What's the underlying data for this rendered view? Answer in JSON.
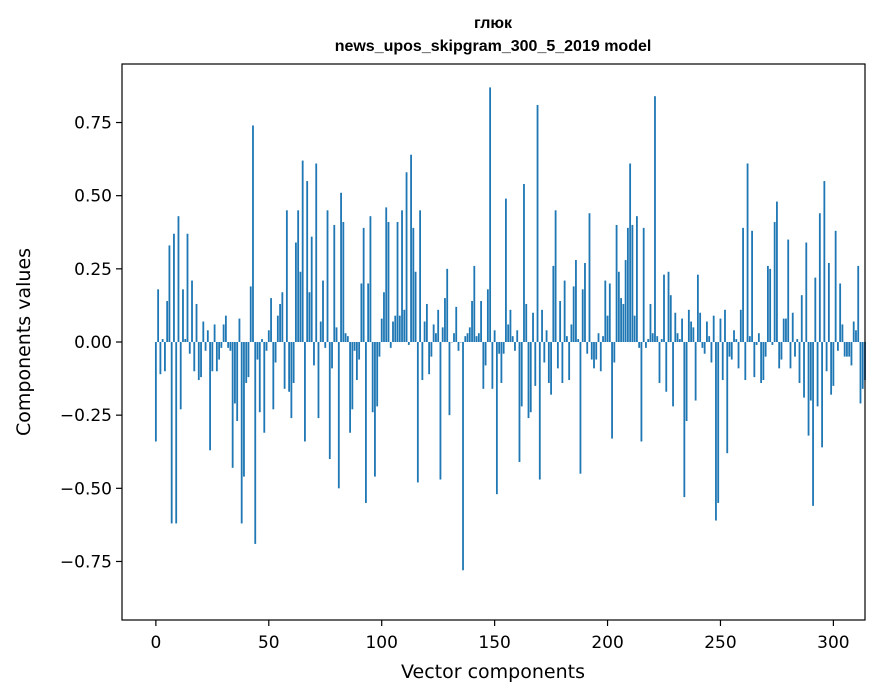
{
  "chart_data": {
    "type": "bar",
    "title": "глюк",
    "subtitle": "news_upos_skipgram_300_5_2019 model",
    "xlabel": "Vector components",
    "ylabel": "Components values",
    "xlim": [
      -15,
      314
    ],
    "ylim": [
      -0.95,
      0.95
    ],
    "xticks": [
      0,
      50,
      100,
      150,
      200,
      250,
      300
    ],
    "yticks": [
      -0.75,
      -0.5,
      -0.25,
      0.0,
      0.25,
      0.5,
      0.75
    ],
    "xtick_labels": [
      "0",
      "50",
      "100",
      "150",
      "200",
      "250",
      "300"
    ],
    "ytick_labels": [
      "−0.75",
      "−0.50",
      "−0.25",
      "0.00",
      "0.25",
      "0.50",
      "0.75"
    ],
    "bar_color": "#1f77b4",
    "grid": false,
    "values": [
      -0.34,
      0.18,
      -0.11,
      0.01,
      -0.1,
      0.14,
      0.33,
      -0.62,
      0.37,
      -0.62,
      0.43,
      -0.23,
      0.18,
      0.01,
      0.37,
      -0.04,
      0.21,
      -0.1,
      0.13,
      -0.13,
      -0.12,
      0.07,
      -0.03,
      0.04,
      -0.37,
      -0.1,
      0.06,
      -0.1,
      -0.06,
      -0.02,
      0.06,
      0.09,
      -0.02,
      -0.03,
      -0.43,
      -0.21,
      -0.27,
      0.08,
      -0.62,
      -0.46,
      -0.14,
      -0.12,
      0.19,
      0.74,
      -0.69,
      -0.06,
      -0.24,
      0.01,
      -0.31,
      -0.03,
      0.04,
      0.15,
      -0.23,
      -0.07,
      0.09,
      0.13,
      0.17,
      -0.16,
      0.45,
      -0.17,
      -0.26,
      -0.14,
      0.34,
      0.45,
      0.24,
      0.62,
      -0.34,
      0.55,
      0.17,
      0.36,
      -0.08,
      0.61,
      -0.26,
      0.07,
      0.21,
      -0.02,
      0.45,
      -0.4,
      -0.09,
      0.4,
      0.05,
      -0.5,
      0.51,
      0.41,
      0.03,
      0.02,
      -0.31,
      -0.23,
      -0.03,
      -0.13,
      -0.06,
      0.2,
      0.39,
      -0.55,
      0.2,
      0.43,
      -0.24,
      -0.46,
      -0.22,
      -0.05,
      0.08,
      0.17,
      0.46,
      0.41,
      -0.02,
      0.07,
      0.09,
      0.41,
      0.09,
      0.45,
      0.11,
      0.58,
      -0.01,
      0.64,
      0.39,
      0.24,
      -0.48,
      0.45,
      -0.13,
      0.07,
      0.13,
      -0.11,
      -0.05,
      0.06,
      0.03,
      0.11,
      -0.47,
      0.05,
      0.15,
      0.25,
      -0.25,
      0.0,
      0.03,
      0.12,
      -0.03,
      0.0,
      -0.78,
      0.02,
      0.03,
      0.05,
      0.14,
      0.26,
      0.02,
      0.03,
      0.14,
      -0.16,
      -0.08,
      0.18,
      0.87,
      -0.16,
      0.04,
      -0.52,
      -0.04,
      -0.14,
      -0.04,
      0.49,
      0.06,
      0.11,
      0.02,
      -0.03,
      0.04,
      -0.41,
      -0.22,
      0.54,
      0.13,
      -0.26,
      -0.24,
      0.1,
      -0.15,
      0.81,
      -0.47,
      0.11,
      -0.07,
      0.04,
      -0.14,
      -0.18,
      0.26,
      0.45,
      -0.09,
      0.14,
      -0.14,
      0.21,
      0.02,
      -0.13,
      0.06,
      0.19,
      0.28,
      0.01,
      -0.45,
      0.18,
      0.27,
      -0.04,
      0.44,
      -0.06,
      -0.09,
      -0.06,
      0.03,
      -0.1,
      0.02,
      0.21,
      0.09,
      0.2,
      -0.33,
      -0.07,
      0.4,
      0.24,
      0.15,
      0.13,
      0.28,
      0.39,
      0.61,
      0.4,
      0.09,
      0.43,
      -0.02,
      -0.34,
      0.39,
      -0.02,
      0.01,
      0.13,
      0.03,
      0.84,
      0.02,
      -0.14,
      0.01,
      0.23,
      -0.17,
      0.24,
      0.16,
      -0.22,
      0.1,
      0.03,
      0.01,
      0.08,
      -0.53,
      -0.27,
      0.11,
      0.07,
      0.05,
      -0.2,
      0.23,
      0.1,
      -0.02,
      -0.04,
      0.07,
      0.02,
      -0.07,
      0.09,
      -0.61,
      -0.55,
      0.08,
      -0.13,
      0.11,
      -0.38,
      -0.05,
      -0.06,
      0.04,
      0.01,
      -0.09,
      0.11,
      0.39,
      -0.13,
      0.61,
      0.02,
      0.38,
      -0.12,
      -0.01,
      0.03,
      -0.14,
      -0.13,
      -0.05,
      0.26,
      0.25,
      -0.01,
      0.41,
      0.48,
      -0.09,
      -0.06,
      0.08,
      0.08,
      0.35,
      -0.09,
      0.1,
      -0.05,
      0.01,
      -0.14,
      0.16,
      -0.19,
      0.34,
      -0.32,
      -0.2,
      -0.56,
      0.22,
      -0.22,
      0.44,
      -0.36,
      0.55,
      -0.1,
      0.27,
      -0.18,
      -0.15,
      0.38,
      -0.03,
      0.2,
      0.06,
      -0.05,
      -0.05,
      -0.05,
      -0.08,
      0.07,
      0.04,
      0.26,
      -0.21,
      -0.16,
      -0.13
    ]
  }
}
